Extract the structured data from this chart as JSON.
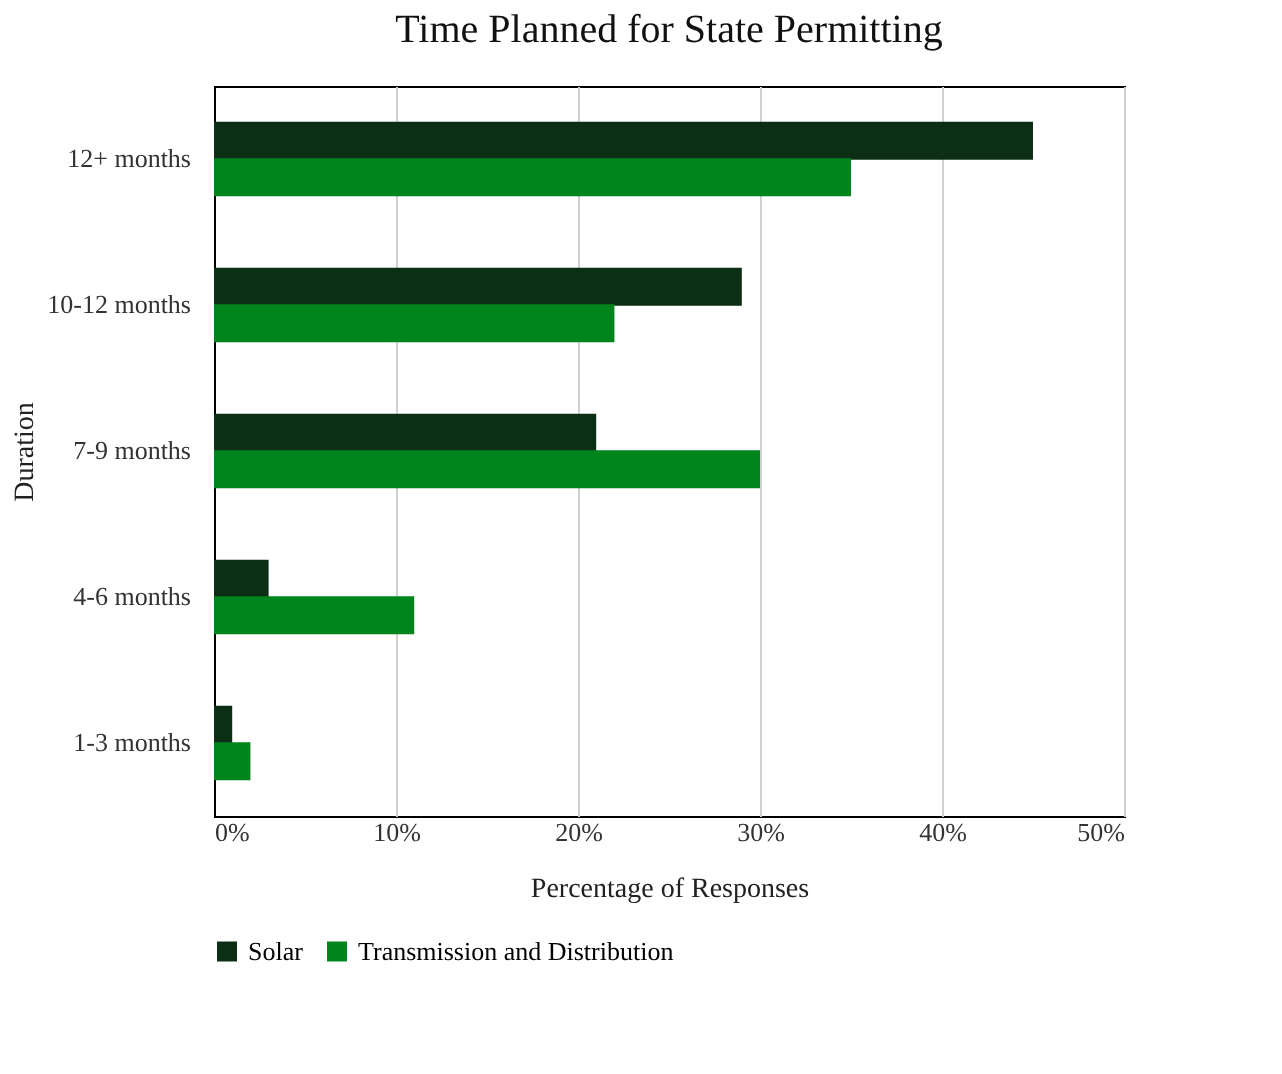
{
  "chart_data": {
    "type": "bar",
    "orientation": "horizontal",
    "title": "Time Planned for State Permitting",
    "xlabel": "Percentage of Responses",
    "ylabel": "Duration",
    "categories": [
      "12+ months",
      "10-12 months",
      "7-9 months",
      "4-6 months",
      "1-3 months"
    ],
    "series": [
      {
        "name": "Solar",
        "color": "#0c2e14",
        "values": [
          45,
          29,
          21,
          3,
          1
        ]
      },
      {
        "name": "Transmission and Distribution",
        "color": "#00851c",
        "values": [
          35,
          22,
          30,
          11,
          2
        ]
      }
    ],
    "xlim": [
      0,
      50
    ],
    "xticks": [
      {
        "value": 0,
        "label": "0%"
      },
      {
        "value": 10,
        "label": "10%"
      },
      {
        "value": 20,
        "label": "20%"
      },
      {
        "value": 30,
        "label": "30%"
      },
      {
        "value": 40,
        "label": "40%"
      },
      {
        "value": 50,
        "label": "50%"
      }
    ],
    "grid": "x",
    "legend": "bottom"
  }
}
